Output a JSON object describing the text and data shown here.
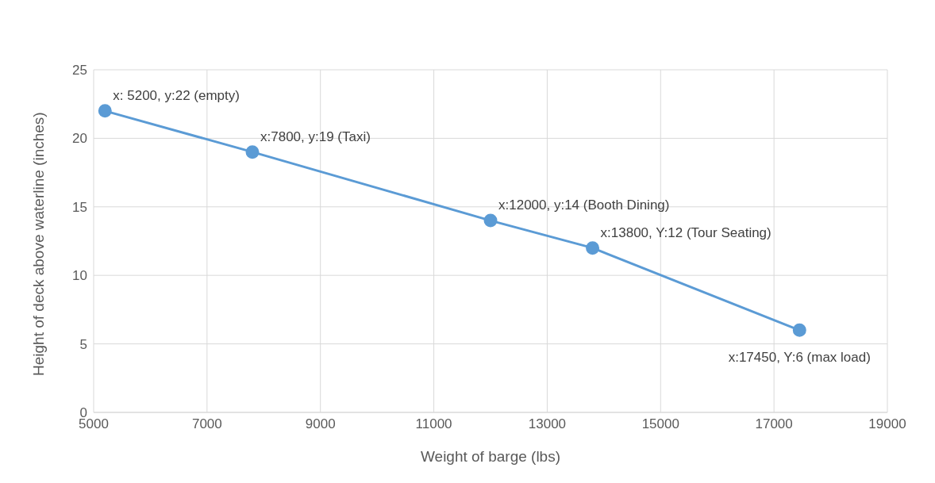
{
  "chart_data": {
    "type": "line",
    "xlabel": "Weight of barge (lbs)",
    "ylabel": "Height of deck above waterline (inches)",
    "x": [
      5200,
      7800,
      12000,
      13800,
      17450
    ],
    "series": [
      {
        "color": "#5b9bd5",
        "values": [
          22,
          19,
          14,
          12,
          6
        ]
      }
    ],
    "xlim": [
      5000,
      19000
    ],
    "xticks": [
      5000,
      7000,
      9000,
      11000,
      13000,
      15000,
      17000,
      19000
    ],
    "ylim": [
      0,
      25
    ],
    "yticks": [
      0,
      5,
      10,
      15,
      20,
      25
    ],
    "grid": true,
    "marker": "circle",
    "line_style": "solid",
    "legend": false,
    "annotations": [
      {
        "text": "x: 5200, y:22 (empty)",
        "x": 5200,
        "y": 22
      },
      {
        "text": "x:7800, y:19 (Taxi)",
        "x": 7800,
        "y": 19
      },
      {
        "text": "x:12000, y:14 (Booth Dining)",
        "x": 12000,
        "y": 14
      },
      {
        "text": "x:13800, Y:12 (Tour Seating)",
        "x": 13800,
        "y": 12
      },
      {
        "text": "x:17450, Y:6 (max load)",
        "x": 17450,
        "y": 6
      }
    ]
  }
}
